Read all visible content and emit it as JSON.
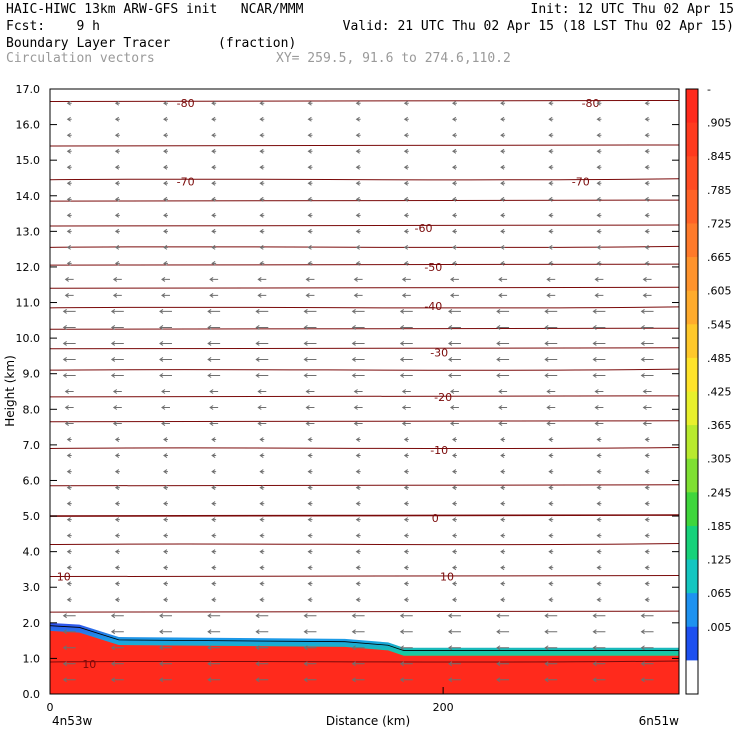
{
  "header": {
    "line1_left": "HAIC-HIWC 13km ARW-GFS init   NCAR/MMM",
    "line1_right": "Init: 12 UTC Thu 02 Apr 15",
    "fcst": "Fcst:    9 h",
    "valid": "Valid: 21 UTC Thu 02 Apr 15 (18 LST Thu 02 Apr 15)",
    "field": "Boundary Layer Tracer",
    "units": "(fraction)",
    "vectors": "Circulation vectors",
    "xy": "XY= 259.5, 91.6 to 274.6,110.2"
  },
  "chart_data": {
    "type": "heatmap",
    "xlabel": "Distance (km)",
    "ylabel": "Height (km)",
    "xlim": [
      0,
      320
    ],
    "ylim": [
      0,
      17
    ],
    "y_ticks": [
      "0.0",
      "1.0",
      "2.0",
      "3.0",
      "4.0",
      "5.0",
      "6.0",
      "7.0",
      "8.0",
      "9.0",
      "10.0",
      "11.0",
      "12.0",
      "13.0",
      "14.0",
      "15.0",
      "16.0",
      "17.0"
    ],
    "x_ticks": [
      "0",
      "200"
    ],
    "x_endpoints": {
      "left": "4n53w",
      "right": "6n51w"
    },
    "colorbar": {
      "labels": [
        "-",
        ".905",
        ".845",
        ".785",
        ".725",
        ".665",
        ".605",
        ".545",
        ".485",
        ".425",
        ".365",
        ".305",
        ".245",
        ".185",
        ".125",
        ".065",
        ".005"
      ],
      "colors": [
        "#ff2a1c",
        "#ff3a1e",
        "#ff4b22",
        "#ff6226",
        "#ff7a2a",
        "#ff932c",
        "#ffab2c",
        "#ffc82a",
        "#ffe32a",
        "#e8f02c",
        "#b8ea2e",
        "#7fe033",
        "#3fd63c",
        "#17d27a",
        "#14c6c0",
        "#1e92f0",
        "#1d50f0",
        "#ffffff"
      ]
    },
    "boundary_layer_top_km": [
      {
        "x": 0,
        "y": 2.0
      },
      {
        "x": 15,
        "y": 1.95
      },
      {
        "x": 35,
        "y": 1.6
      },
      {
        "x": 80,
        "y": 1.58
      },
      {
        "x": 150,
        "y": 1.55
      },
      {
        "x": 172,
        "y": 1.45
      },
      {
        "x": 180,
        "y": 1.3
      },
      {
        "x": 320,
        "y": 1.3
      }
    ],
    "isotherms": [
      {
        "label": "-80",
        "label_x": [
          69,
          275
        ]
      },
      {
        "label": "-70",
        "label_x": [
          69,
          270
        ]
      },
      {
        "label": "-60",
        "label_x": [
          190
        ]
      },
      {
        "label": "-50",
        "label_x": [
          195
        ]
      },
      {
        "label": "-40",
        "label_x": [
          195
        ]
      },
      {
        "label": "-30",
        "label_x": [
          198
        ]
      },
      {
        "label": "-20",
        "label_x": [
          200
        ]
      },
      {
        "label": "-10",
        "label_x": [
          198
        ]
      },
      {
        "label": "0",
        "label_x": [
          196
        ]
      },
      {
        "label": "10",
        "label_x": [
          7,
          202
        ]
      },
      {
        "label": "10",
        "label_x": [
          20
        ]
      }
    ]
  }
}
